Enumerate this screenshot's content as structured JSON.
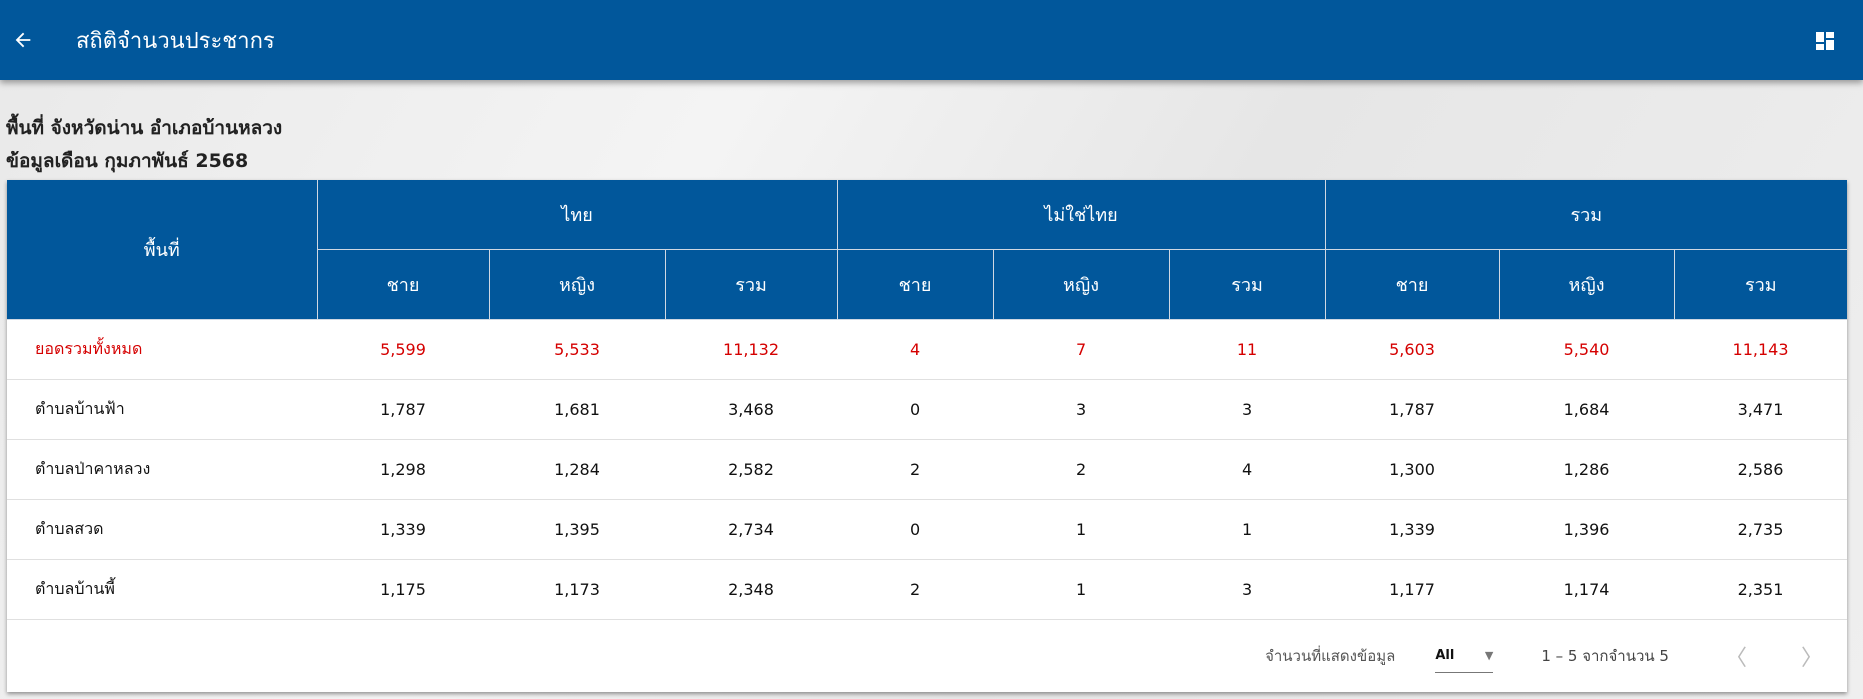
{
  "header": {
    "title": "สถิติจำนวนประชากร",
    "back_icon": "arrow-left-icon",
    "menu_icon": "dashboard-grid-icon"
  },
  "info": {
    "area": "พื้นที่ จังหวัดน่าน อำเภอบ้านหลวง",
    "month": "ข้อมูลเดือน กุมภาพันธ์ 2568"
  },
  "table": {
    "area_header": "พื้นที่",
    "groups": [
      "ไทย",
      "ไม่ใช่ไทย",
      "รวม"
    ],
    "sub": [
      "ชาย",
      "หญิง",
      "รวม"
    ],
    "rows": [
      {
        "area": "ยอดรวมทั้งหมด",
        "v": [
          "5,599",
          "5,533",
          "11,132",
          "4",
          "7",
          "11",
          "5,603",
          "5,540",
          "11,143"
        ]
      },
      {
        "area": "ตำบลบ้านฟ้า",
        "v": [
          "1,787",
          "1,681",
          "3,468",
          "0",
          "3",
          "3",
          "1,787",
          "1,684",
          "3,471"
        ]
      },
      {
        "area": "ตำบลป่าคาหลวง",
        "v": [
          "1,298",
          "1,284",
          "2,582",
          "2",
          "2",
          "4",
          "1,300",
          "1,286",
          "2,586"
        ]
      },
      {
        "area": "ตำบลสวด",
        "v": [
          "1,339",
          "1,395",
          "2,734",
          "0",
          "1",
          "1",
          "1,339",
          "1,396",
          "2,735"
        ]
      },
      {
        "area": "ตำบลบ้านพี้",
        "v": [
          "1,175",
          "1,173",
          "2,348",
          "2",
          "1",
          "3",
          "1,177",
          "1,174",
          "2,351"
        ]
      }
    ]
  },
  "footer": {
    "rows_label": "จำนวนที่แสดงข้อมูล",
    "rows_value": "All",
    "range": "1 – 5 จากจำนวน 5"
  },
  "colors": {
    "primary": "#01579b",
    "total": "#d50000"
  }
}
